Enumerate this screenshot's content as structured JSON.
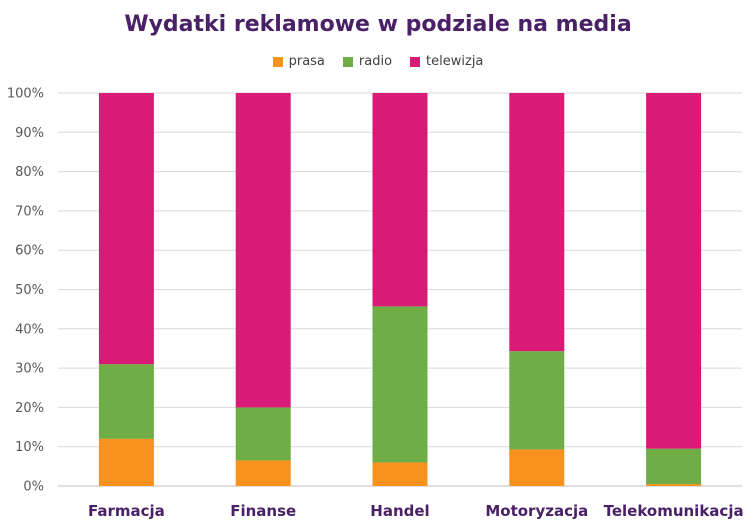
{
  "chart_data": {
    "type": "bar",
    "stacked": "percent",
    "title": "Wydatki reklamowe w podziale na media",
    "xlabel": "",
    "ylabel": "",
    "ylim": [
      0,
      100
    ],
    "yticks": [
      "0%",
      "10%",
      "20%",
      "30%",
      "40%",
      "50%",
      "60%",
      "70%",
      "80%",
      "90%",
      "100%"
    ],
    "grid": true,
    "legend_position": "top",
    "categories": [
      "Farmacja",
      "Finanse",
      "Handel",
      "Motoryzacja",
      "Telekomunikacja"
    ],
    "series": [
      {
        "name": "prasa",
        "color": "#f7921e",
        "values": [
          12,
          6.5,
          6,
          9.3,
          0.5
        ]
      },
      {
        "name": "radio",
        "color": "#70ad47",
        "values": [
          19,
          13.5,
          39.7,
          25,
          9
        ]
      },
      {
        "name": "telewizja",
        "color": "#d91a77",
        "values": [
          69,
          80,
          54.3,
          65.7,
          90.5
        ]
      }
    ]
  }
}
